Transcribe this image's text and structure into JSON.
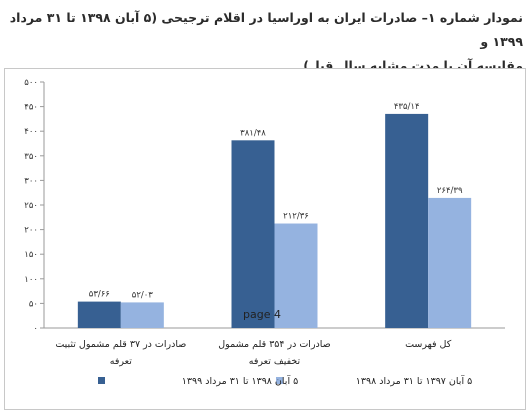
{
  "header": {
    "title_line1": "نمودار شماره ۱– صادرات ایران به اوراسیا در اقلام ترجیحی (۵ آبان ۱۳۹۸ تا ۳۱ مرداد ۱۳۹۹ و",
    "title_line2": "مقایسه آن با مدت مشابه سال قبل)"
  },
  "page_marker": "page 4",
  "chart_data": {
    "type": "bar",
    "ylim": [
      0,
      500
    ],
    "y_ticks": [
      0,
      50,
      100,
      150,
      200,
      250,
      300,
      350,
      400,
      450,
      500
    ],
    "y_tick_labels": [
      "۰",
      "۵۰",
      "۱۰۰",
      "۱۵۰",
      "۲۰۰",
      "۲۵۰",
      "۳۰۰",
      "۳۵۰",
      "۴۰۰",
      "۴۵۰",
      "۵۰۰"
    ],
    "grid": false,
    "legend_position": "bottom",
    "categories": [
      [
        "صادرات در ۳۷ قلم مشمول تثبیت",
        "تعرفه"
      ],
      [
        "صادرات در ۳۵۴ قلم مشمول",
        "تخفیف تعرفه"
      ],
      [
        "کل فهرست"
      ]
    ],
    "series": [
      {
        "name": "۵ آبان ۱۳۹۸ تا ۳۱ مرداد ۱۳۹۹",
        "color": "#376092",
        "values": [
          53.66,
          381.48,
          435.14
        ],
        "labels": [
          "۵۳/۶۶",
          "۳۸۱/۴۸",
          "۴۳۵/۱۴"
        ]
      },
      {
        "name": "۵ آبان ۱۳۹۷ تا ۳۱ مرداد ۱۳۹۸",
        "color": "#95b3e0",
        "values": [
          52.03,
          212.36,
          264.39
        ],
        "labels": [
          "۵۲/۰۳",
          "۲۱۲/۳۶",
          "۲۶۴/۳۹"
        ]
      }
    ]
  }
}
